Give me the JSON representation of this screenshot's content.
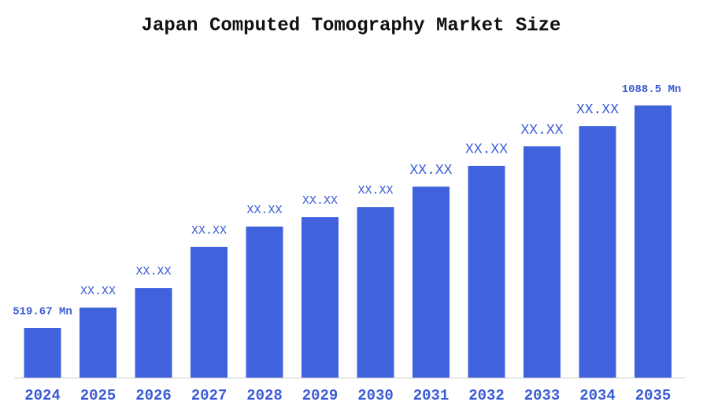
{
  "chart_data": {
    "type": "bar",
    "title": "Japan Computed Tomography Market Size",
    "categories": [
      "2024",
      "2025",
      "2026",
      "2027",
      "2028",
      "2029",
      "2030",
      "2031",
      "2032",
      "2033",
      "2034",
      "2035"
    ],
    "values": [
      519.67,
      572,
      622,
      727,
      779,
      803,
      829,
      881,
      934,
      984,
      1036,
      1088.5
    ],
    "value_labels": [
      "519.67 Mn",
      "XX.XX",
      "XX.XX",
      "XX.XX",
      "XX.XX",
      "XX.XX",
      "XX.XX",
      "XX.XX",
      "XX.XX",
      "XX.XX",
      "XX.XX",
      "1088.5 Mn"
    ],
    "color": "#4063dd",
    "ylim": [
      393,
      1157
    ]
  }
}
